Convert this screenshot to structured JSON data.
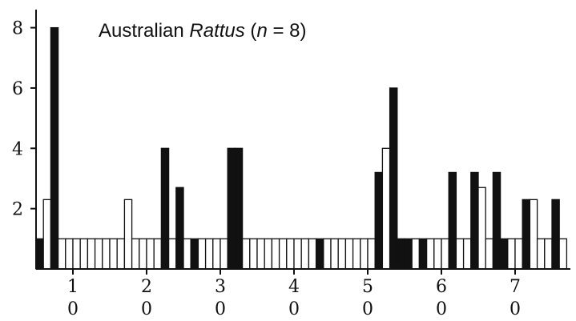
{
  "chart_data": {
    "type": "bar",
    "title": "Australian Rattus (n = 8)",
    "title_parts": [
      {
        "text": "Australian ",
        "italic": false
      },
      {
        "text": "Rattus",
        "italic": true
      },
      {
        "text": " (",
        "italic": false
      },
      {
        "text": "n",
        "italic": true
      },
      {
        "text": " = 8)",
        "italic": false
      }
    ],
    "xlabel": "",
    "ylabel": "",
    "ylim": [
      0,
      8.6
    ],
    "yticks": [
      2,
      4,
      6,
      8
    ],
    "xlim": [
      0.5,
      7.75
    ],
    "x_tick_labels": [
      {
        "x": 1,
        "label": "1",
        "sub": "0"
      },
      {
        "x": 2,
        "label": "2",
        "sub": "0"
      },
      {
        "x": 3,
        "label": "3",
        "sub": "0"
      },
      {
        "x": 4,
        "label": "4",
        "sub": "0"
      },
      {
        "x": 5,
        "label": "5",
        "sub": "0"
      },
      {
        "x": 6,
        "label": "6",
        "sub": "0"
      },
      {
        "x": 7,
        "label": "7",
        "sub": "0"
      }
    ],
    "bar_width": 0.1,
    "grid": false,
    "legend": "none",
    "colors": {
      "filled": "#111111",
      "open": "#ffffff",
      "outline": "#111111"
    },
    "bars": [
      {
        "x": 0.55,
        "value": 1,
        "filled": true
      },
      {
        "x": 0.65,
        "value": 2.3,
        "filled": false
      },
      {
        "x": 0.75,
        "value": 8,
        "filled": true
      },
      {
        "x": 0.85,
        "value": 1,
        "filled": false
      },
      {
        "x": 0.95,
        "value": 1,
        "filled": false
      },
      {
        "x": 1.05,
        "value": 1,
        "filled": false
      },
      {
        "x": 1.15,
        "value": 1,
        "filled": false
      },
      {
        "x": 1.25,
        "value": 1,
        "filled": false
      },
      {
        "x": 1.35,
        "value": 1,
        "filled": false
      },
      {
        "x": 1.45,
        "value": 1,
        "filled": false
      },
      {
        "x": 1.55,
        "value": 1,
        "filled": false
      },
      {
        "x": 1.65,
        "value": 1,
        "filled": false
      },
      {
        "x": 1.75,
        "value": 2.3,
        "filled": false
      },
      {
        "x": 1.85,
        "value": 1,
        "filled": false
      },
      {
        "x": 1.95,
        "value": 1,
        "filled": false
      },
      {
        "x": 2.05,
        "value": 1,
        "filled": false
      },
      {
        "x": 2.15,
        "value": 1,
        "filled": false
      },
      {
        "x": 2.25,
        "value": 4,
        "filled": true
      },
      {
        "x": 2.35,
        "value": 1,
        "filled": false
      },
      {
        "x": 2.45,
        "value": 2.7,
        "filled": true
      },
      {
        "x": 2.55,
        "value": 1,
        "filled": false
      },
      {
        "x": 2.65,
        "value": 1,
        "filled": true
      },
      {
        "x": 2.75,
        "value": 1,
        "filled": false
      },
      {
        "x": 2.85,
        "value": 1,
        "filled": false
      },
      {
        "x": 2.95,
        "value": 1,
        "filled": false
      },
      {
        "x": 3.05,
        "value": 1,
        "filled": false
      },
      {
        "x": 3.15,
        "value": 4,
        "filled": true
      },
      {
        "x": 3.25,
        "value": 4,
        "filled": true
      },
      {
        "x": 3.35,
        "value": 1,
        "filled": false
      },
      {
        "x": 3.45,
        "value": 1,
        "filled": false
      },
      {
        "x": 3.55,
        "value": 1,
        "filled": false
      },
      {
        "x": 3.65,
        "value": 1,
        "filled": false
      },
      {
        "x": 3.75,
        "value": 1,
        "filled": false
      },
      {
        "x": 3.85,
        "value": 1,
        "filled": false
      },
      {
        "x": 3.95,
        "value": 1,
        "filled": false
      },
      {
        "x": 4.05,
        "value": 1,
        "filled": false
      },
      {
        "x": 4.15,
        "value": 1,
        "filled": false
      },
      {
        "x": 4.25,
        "value": 1,
        "filled": false
      },
      {
        "x": 4.35,
        "value": 1,
        "filled": true
      },
      {
        "x": 4.45,
        "value": 1,
        "filled": false
      },
      {
        "x": 4.55,
        "value": 1,
        "filled": false
      },
      {
        "x": 4.65,
        "value": 1,
        "filled": false
      },
      {
        "x": 4.75,
        "value": 1,
        "filled": false
      },
      {
        "x": 4.85,
        "value": 1,
        "filled": false
      },
      {
        "x": 4.95,
        "value": 1,
        "filled": false
      },
      {
        "x": 5.05,
        "value": 1,
        "filled": false
      },
      {
        "x": 5.15,
        "value": 3.2,
        "filled": true
      },
      {
        "x": 5.25,
        "value": 4,
        "filled": false
      },
      {
        "x": 5.35,
        "value": 6,
        "filled": true
      },
      {
        "x": 5.45,
        "value": 1,
        "filled": true
      },
      {
        "x": 5.55,
        "value": 1,
        "filled": true
      },
      {
        "x": 5.65,
        "value": 1,
        "filled": false
      },
      {
        "x": 5.75,
        "value": 1,
        "filled": true
      },
      {
        "x": 5.85,
        "value": 1,
        "filled": false
      },
      {
        "x": 5.95,
        "value": 1,
        "filled": false
      },
      {
        "x": 6.05,
        "value": 1,
        "filled": false
      },
      {
        "x": 6.15,
        "value": 3.2,
        "filled": true
      },
      {
        "x": 6.25,
        "value": 1,
        "filled": false
      },
      {
        "x": 6.35,
        "value": 1,
        "filled": false
      },
      {
        "x": 6.45,
        "value": 3.2,
        "filled": true
      },
      {
        "x": 6.55,
        "value": 2.7,
        "filled": false
      },
      {
        "x": 6.65,
        "value": 1,
        "filled": false
      },
      {
        "x": 6.75,
        "value": 3.2,
        "filled": true
      },
      {
        "x": 6.85,
        "value": 1,
        "filled": true
      },
      {
        "x": 6.95,
        "value": 1,
        "filled": false
      },
      {
        "x": 7.05,
        "value": 1,
        "filled": false
      },
      {
        "x": 7.15,
        "value": 2.3,
        "filled": true
      },
      {
        "x": 7.25,
        "value": 2.3,
        "filled": false
      },
      {
        "x": 7.35,
        "value": 1,
        "filled": false
      },
      {
        "x": 7.45,
        "value": 1,
        "filled": false
      },
      {
        "x": 7.55,
        "value": 2.3,
        "filled": true
      },
      {
        "x": 7.65,
        "value": 1,
        "filled": false
      }
    ]
  }
}
